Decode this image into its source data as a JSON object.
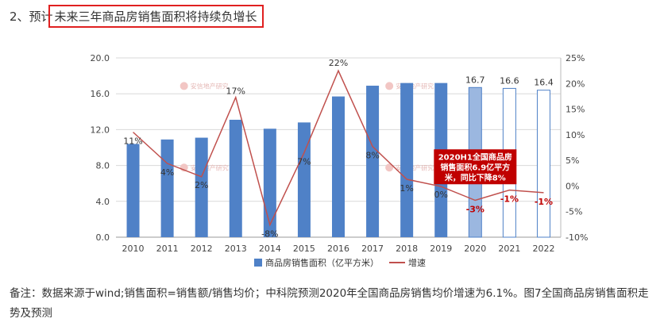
{
  "heading": {
    "prefix": "2、预计",
    "boxed_text": "未来三年商品房销售面积将持续负增长"
  },
  "chart_data": {
    "type": "bar",
    "categories": [
      "2010",
      "2011",
      "2012",
      "2013",
      "2014",
      "2015",
      "2016",
      "2017",
      "2018",
      "2019",
      "2020",
      "2021",
      "2022"
    ],
    "series": [
      {
        "name": "商品房销售面积（亿平方米）",
        "type": "bar",
        "axis": "left",
        "values": [
          10.4,
          10.9,
          11.1,
          13.1,
          12.1,
          12.8,
          15.7,
          16.9,
          17.2,
          17.2,
          16.7,
          16.6,
          16.4
        ],
        "forecast_from_index": 10,
        "data_labels": [
          "",
          "",
          "",
          "",
          "",
          "",
          "",
          "",
          "",
          "",
          "16.7",
          "16.6",
          "16.4"
        ]
      },
      {
        "name": "增速",
        "type": "line",
        "axis": "right",
        "values": [
          10.5,
          4.4,
          1.8,
          17.3,
          -7.6,
          6.5,
          22.5,
          7.7,
          1.3,
          -0.1,
          -2.8,
          -0.8,
          -1.3
        ],
        "data_labels": [
          "11%",
          "4%",
          "2%",
          "17%",
          "-8%",
          "7%",
          "22%",
          "8%",
          "1%",
          "0%",
          "-3%",
          "-1%",
          "-1%"
        ]
      }
    ],
    "y_left": {
      "min": 0,
      "max": 20,
      "ticks": [
        "0.0",
        "4.0",
        "8.0",
        "12.0",
        "16.0",
        "20.0"
      ]
    },
    "y_right": {
      "min": -10,
      "max": 25,
      "ticks": [
        "-10%",
        "-5%",
        "0%",
        "5%",
        "10%",
        "15%",
        "20%",
        "25%"
      ]
    },
    "grid": true,
    "legend_position": "bottom",
    "annotation": {
      "lines": [
        "2020H1全国商品房",
        "销售面积6.9亿平方",
        "米，同比下降8%"
      ]
    },
    "watermark": "安信地产研究",
    "colors": {
      "bar": "#4f81c7",
      "bar_forecast": "#9bb7e0",
      "line": "#c0504d",
      "annotation_bg": "#c00000"
    }
  },
  "note": {
    "text": "备注：数据来源于wind;销售面积=销售额/销售均价；中科院预测2020年全国商品房销售均价增速为6.1%。图7全国商品房销售面积走势及预测"
  }
}
